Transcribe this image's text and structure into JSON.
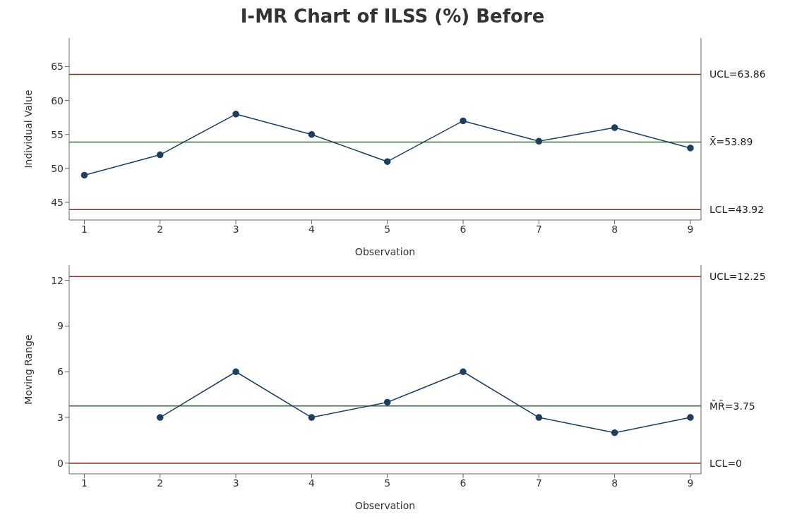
{
  "chart_data": [
    {
      "type": "line",
      "title": "I-MR Chart of ILSS (%) Before",
      "xlabel": "Observation",
      "ylabel": "Individual Value",
      "x": [
        1,
        2,
        3,
        4,
        5,
        6,
        7,
        8,
        9
      ],
      "series": [
        {
          "color": "#1f3f5f",
          "values": [
            49,
            52,
            58,
            55,
            51,
            57,
            54,
            56,
            53
          ]
        }
      ],
      "xlim": [
        0.8,
        9.14
      ],
      "xticks": [
        1,
        2,
        3,
        4,
        5,
        6,
        7,
        8,
        9
      ],
      "ylim": [
        42.4,
        69.2
      ],
      "yticks": [
        45,
        50,
        55,
        60,
        65
      ],
      "ref_lines": [
        {
          "axis": "y",
          "value": 63.86,
          "label": "UCL=63.86",
          "color": "#8b2a2a"
        },
        {
          "axis": "y",
          "value": 53.89,
          "label": "X̄=53.89",
          "color": "#2e6b3a"
        },
        {
          "axis": "y",
          "value": 43.92,
          "label": "LCL=43.92",
          "color": "#8b2a2a"
        }
      ],
      "marker": "circle",
      "line_style": "solid",
      "grid": false,
      "legend": false
    },
    {
      "type": "line",
      "xlabel": "Observation",
      "ylabel": "Moving Range",
      "x": [
        2,
        3,
        4,
        5,
        6,
        7,
        8,
        9
      ],
      "series": [
        {
          "color": "#1f3f5f",
          "values": [
            3,
            6,
            3,
            4,
            6,
            3,
            2,
            3
          ]
        }
      ],
      "xlim": [
        0.8,
        9.14
      ],
      "xticks": [
        1,
        2,
        3,
        4,
        5,
        6,
        7,
        8,
        9
      ],
      "ylim": [
        -0.7,
        13
      ],
      "yticks": [
        0,
        3,
        6,
        9,
        12
      ],
      "ref_lines": [
        {
          "axis": "y",
          "value": 12.25,
          "label": "UCL=12.25",
          "color": "#8b2a2a"
        },
        {
          "axis": "y",
          "value": 3.75,
          "label": "M̄R̄=3.75",
          "color": "#2e6b3a"
        },
        {
          "axis": "y",
          "value": 0,
          "label": "LCL=0",
          "color": "#8b2a2a"
        }
      ],
      "marker": "circle",
      "line_style": "solid",
      "grid": false,
      "legend": false
    }
  ]
}
